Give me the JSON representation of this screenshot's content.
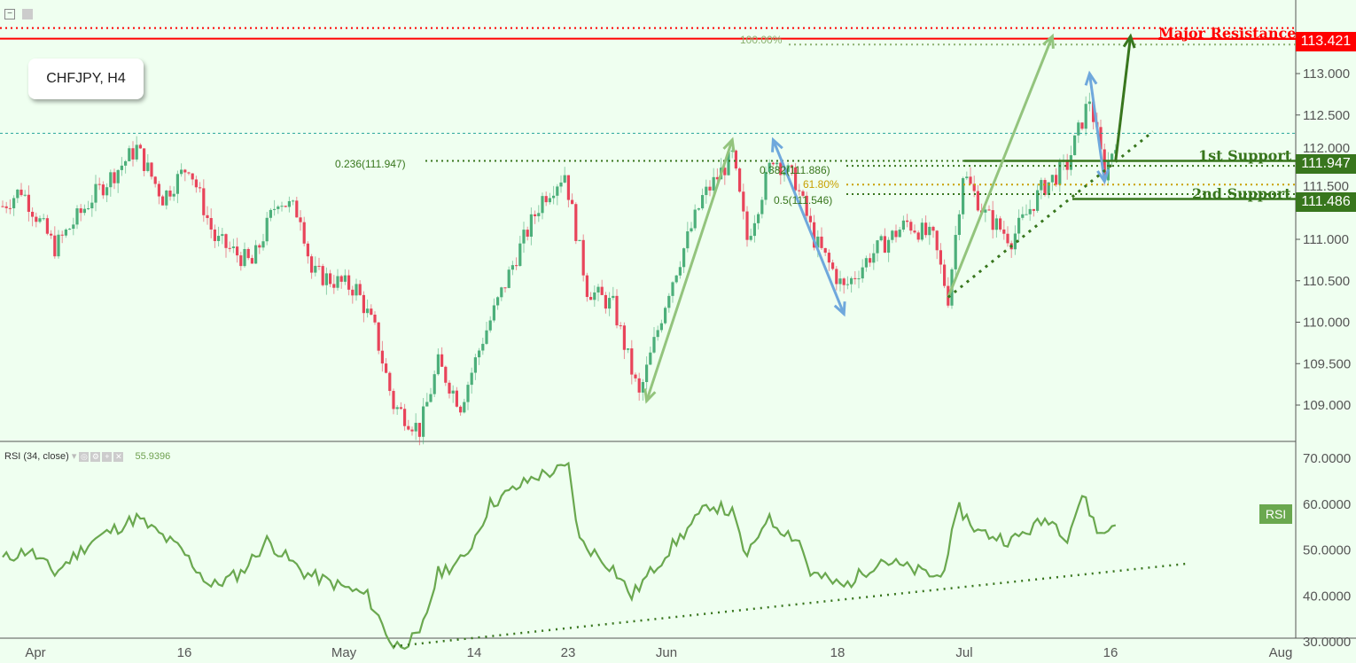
{
  "symbol": "CHFJPY, H4",
  "rsi_header": {
    "name": "RSI (34, close)",
    "value": "55.9396"
  },
  "rsi_tag": "RSI",
  "labels": {
    "major_resistance": "Major Resistance",
    "support1": "1st Support",
    "support2": "2nd Support"
  },
  "tags": {
    "resistance": "113.421",
    "support1": "111.947",
    "support2": "111.486"
  },
  "fib_labels": {
    "f100": "100.00%",
    "f236": "0.236(111.947)",
    "f382": "0.382(111.886)",
    "f618": "61.80%",
    "f50": "0.5(111.546)"
  },
  "colors": {
    "up": "#4caf7a",
    "down": "#e8445a",
    "resistance": "#ff0000",
    "support": "#38761d",
    "rsi": "#6aa84f",
    "light_arrow": "#93c47d",
    "blue_arrow": "#6fa8dc"
  },
  "chart_data": [
    {
      "type": "candlestick",
      "title": "CHFJPY, H4",
      "ylim": [
        108.7,
        113.9
      ],
      "y_ticks": [
        "113.000",
        "112.500",
        "112.000",
        "111.500",
        "111.000",
        "110.500",
        "110.000",
        "109.500",
        "109.000"
      ],
      "x_ticks": [
        "Apr",
        "16",
        "May",
        "14",
        "23",
        "Jun",
        "18",
        "Jul",
        "16",
        "Aug"
      ],
      "close_waypoints": [
        [
          0,
          111.4
        ],
        [
          5,
          111.6
        ],
        [
          14,
          110.9
        ],
        [
          24,
          111.5
        ],
        [
          36,
          112.1
        ],
        [
          43,
          111.5
        ],
        [
          50,
          111.9
        ],
        [
          57,
          111.0
        ],
        [
          67,
          110.7
        ],
        [
          74,
          111.5
        ],
        [
          80,
          111.3
        ],
        [
          83,
          110.6
        ],
        [
          95,
          110.4
        ],
        [
          100,
          109.9
        ],
        [
          105,
          109.0
        ],
        [
          112,
          108.7
        ],
        [
          117,
          109.5
        ],
        [
          123,
          109.0
        ],
        [
          129,
          109.8
        ],
        [
          138,
          110.8
        ],
        [
          145,
          111.5
        ],
        [
          151,
          111.8
        ],
        [
          157,
          110.4
        ],
        [
          164,
          110.2
        ],
        [
          171,
          109.1
        ],
        [
          179,
          110.4
        ],
        [
          188,
          111.5
        ],
        [
          196,
          112.0
        ],
        [
          200,
          111.0
        ],
        [
          207,
          112.0
        ],
        [
          213,
          111.7
        ],
        [
          218,
          111.0
        ],
        [
          226,
          110.4
        ],
        [
          233,
          110.8
        ],
        [
          243,
          111.2
        ],
        [
          250,
          111.0
        ],
        [
          254,
          110.3
        ],
        [
          258,
          111.8
        ],
        [
          264,
          111.3
        ],
        [
          271,
          111.0
        ],
        [
          279,
          111.6
        ],
        [
          286,
          111.9
        ],
        [
          292,
          112.7
        ],
        [
          296,
          111.8
        ],
        [
          299,
          112.2
        ]
      ],
      "levels": {
        "major_resistance": 113.421,
        "resistance_dotted": 113.55,
        "fib_100": 113.35,
        "current": 112.28,
        "fib_236": 111.947,
        "fib_382": 111.886,
        "fib_618": 111.66,
        "fib_50": 111.546,
        "support1": 111.947,
        "support2": 111.486
      }
    },
    {
      "type": "line",
      "title": "RSI (34, close)",
      "ylim": [
        27,
        72
      ],
      "y_ticks": [
        "70.0000",
        "60.0000",
        "50.0000",
        "40.0000",
        "30.0000"
      ],
      "waypoints": [
        [
          0,
          48
        ],
        [
          7,
          50
        ],
        [
          14,
          45
        ],
        [
          24,
          52
        ],
        [
          36,
          57
        ],
        [
          48,
          50
        ],
        [
          56,
          42
        ],
        [
          64,
          45
        ],
        [
          71,
          52
        ],
        [
          81,
          45
        ],
        [
          98,
          40
        ],
        [
          105,
          29
        ],
        [
          112,
          31
        ],
        [
          117,
          45
        ],
        [
          124,
          48
        ],
        [
          131,
          60
        ],
        [
          143,
          66
        ],
        [
          152,
          68
        ],
        [
          155,
          52
        ],
        [
          164,
          46
        ],
        [
          169,
          40
        ],
        [
          179,
          50
        ],
        [
          190,
          60
        ],
        [
          196,
          58
        ],
        [
          200,
          48
        ],
        [
          205,
          57
        ],
        [
          214,
          52
        ],
        [
          217,
          45
        ],
        [
          226,
          42
        ],
        [
          236,
          48
        ],
        [
          243,
          46
        ],
        [
          252,
          44
        ],
        [
          257,
          59
        ],
        [
          262,
          54
        ],
        [
          271,
          52
        ],
        [
          281,
          57
        ],
        [
          286,
          53
        ],
        [
          290,
          62
        ],
        [
          295,
          53
        ],
        [
          299,
          56
        ]
      ],
      "trendline": [
        [
          105,
          29
        ],
        [
          318,
          47
        ]
      ]
    }
  ]
}
